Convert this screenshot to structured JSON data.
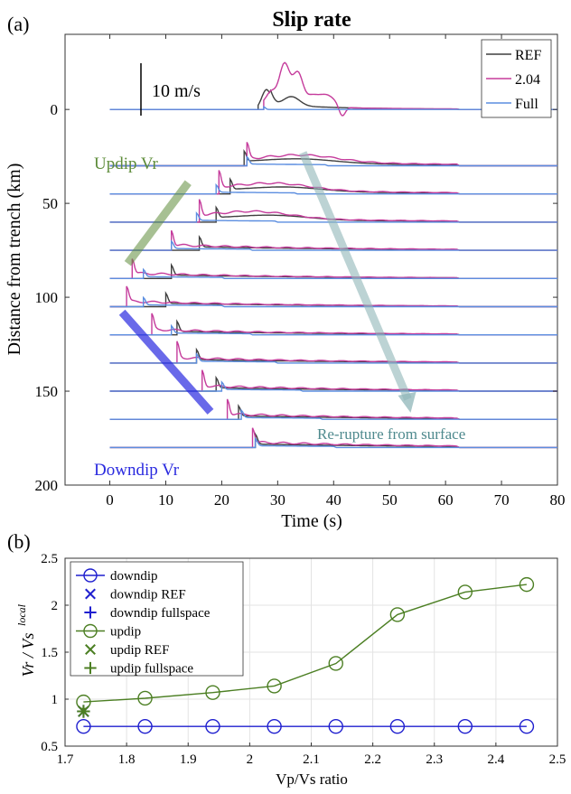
{
  "chart_data": [
    {
      "type": "line",
      "panel_label": "(a)",
      "title": "Slip rate",
      "xlabel": "Time (s)",
      "ylabel": "Distance from trench (km)",
      "xlim": [
        -8,
        80
      ],
      "ylim": [
        200,
        -40
      ],
      "xticks": [
        "0",
        "10",
        "20",
        "30",
        "40",
        "50",
        "60",
        "70",
        "80"
      ],
      "yticks": [
        "0",
        "50",
        "100",
        "150",
        "200"
      ],
      "scale_bar_label": "10 m/s",
      "annotations": {
        "updip": "Updip Vr",
        "downdip": "Downdip Vr",
        "rerupture": "Re-rupture from surface"
      },
      "legend": {
        "position": "top-right",
        "entries": [
          "REF",
          "2.04",
          "Full"
        ]
      },
      "colors": {
        "REF": "#3f3f3f",
        "2.04": "#c53c9c",
        "Full": "#5b8ee0",
        "updip_arrow": "#5e8c3a",
        "downdip_arrow": "#2a2adf",
        "rerupture_arrow": "#8fb5b8"
      },
      "station_distances_km": [
        0,
        30,
        45,
        60,
        75,
        90,
        105,
        120,
        135,
        150,
        165,
        180
      ],
      "onset_times_s": {
        "REF": [
          26.5,
          24,
          21.5,
          19,
          16,
          11,
          10,
          12,
          15.5,
          19,
          23,
          26
        ],
        "2.04": [
          27.5,
          24.5,
          19.5,
          16,
          11,
          4,
          3,
          7.5,
          12,
          16.5,
          21,
          25.5
        ],
        "Full": [
          27.5,
          24.5,
          19,
          15.5,
          11,
          6,
          6,
          11,
          15.5,
          20,
          23.5,
          26
        ]
      }
    },
    {
      "type": "line",
      "panel_label": "(b)",
      "xlabel": "Vp/Vs ratio",
      "ylabel_main": "Vr / Vs",
      "ylabel_sup": "local",
      "xlim": [
        1.7,
        2.5
      ],
      "ylim": [
        0.5,
        2.5
      ],
      "xticks": [
        "1.7",
        "1.8",
        "1.9",
        "2",
        "2.1",
        "2.2",
        "2.3",
        "2.4",
        "2.5"
      ],
      "yticks": [
        "0.5",
        "1",
        "1.5",
        "2",
        "2.5"
      ],
      "grid": true,
      "legend_position": "top-left",
      "x": [
        1.73,
        1.83,
        1.94,
        2.04,
        2.14,
        2.24,
        2.35,
        2.45
      ],
      "series": [
        {
          "name": "downdip",
          "color": "#1f1fcf",
          "marker": "circle",
          "x": [
            1.73,
            1.83,
            1.94,
            2.04,
            2.14,
            2.24,
            2.35,
            2.45
          ],
          "values": [
            0.71,
            0.71,
            0.71,
            0.71,
            0.71,
            0.71,
            0.71,
            0.71
          ]
        },
        {
          "name": "downdip REF",
          "color": "#1f1fcf",
          "marker": "x",
          "x": [
            1.73
          ],
          "values": [
            0.87
          ]
        },
        {
          "name": "downdip fullspace",
          "color": "#1f1fcf",
          "marker": "plus",
          "x": [
            1.73
          ],
          "values": [
            0.87
          ]
        },
        {
          "name": "updip",
          "color": "#4c7f23",
          "marker": "circle",
          "x": [
            1.73,
            1.83,
            1.94,
            2.04,
            2.14,
            2.24,
            2.35,
            2.45
          ],
          "values": [
            0.97,
            1.01,
            1.07,
            1.14,
            1.38,
            1.9,
            2.14,
            2.22
          ]
        },
        {
          "name": "updip REF",
          "color": "#4c7f23",
          "marker": "x",
          "x": [
            1.73
          ],
          "values": [
            0.87
          ]
        },
        {
          "name": "updip fullspace",
          "color": "#4c7f23",
          "marker": "plus",
          "x": [
            1.73
          ],
          "values": [
            0.87
          ]
        }
      ]
    }
  ]
}
